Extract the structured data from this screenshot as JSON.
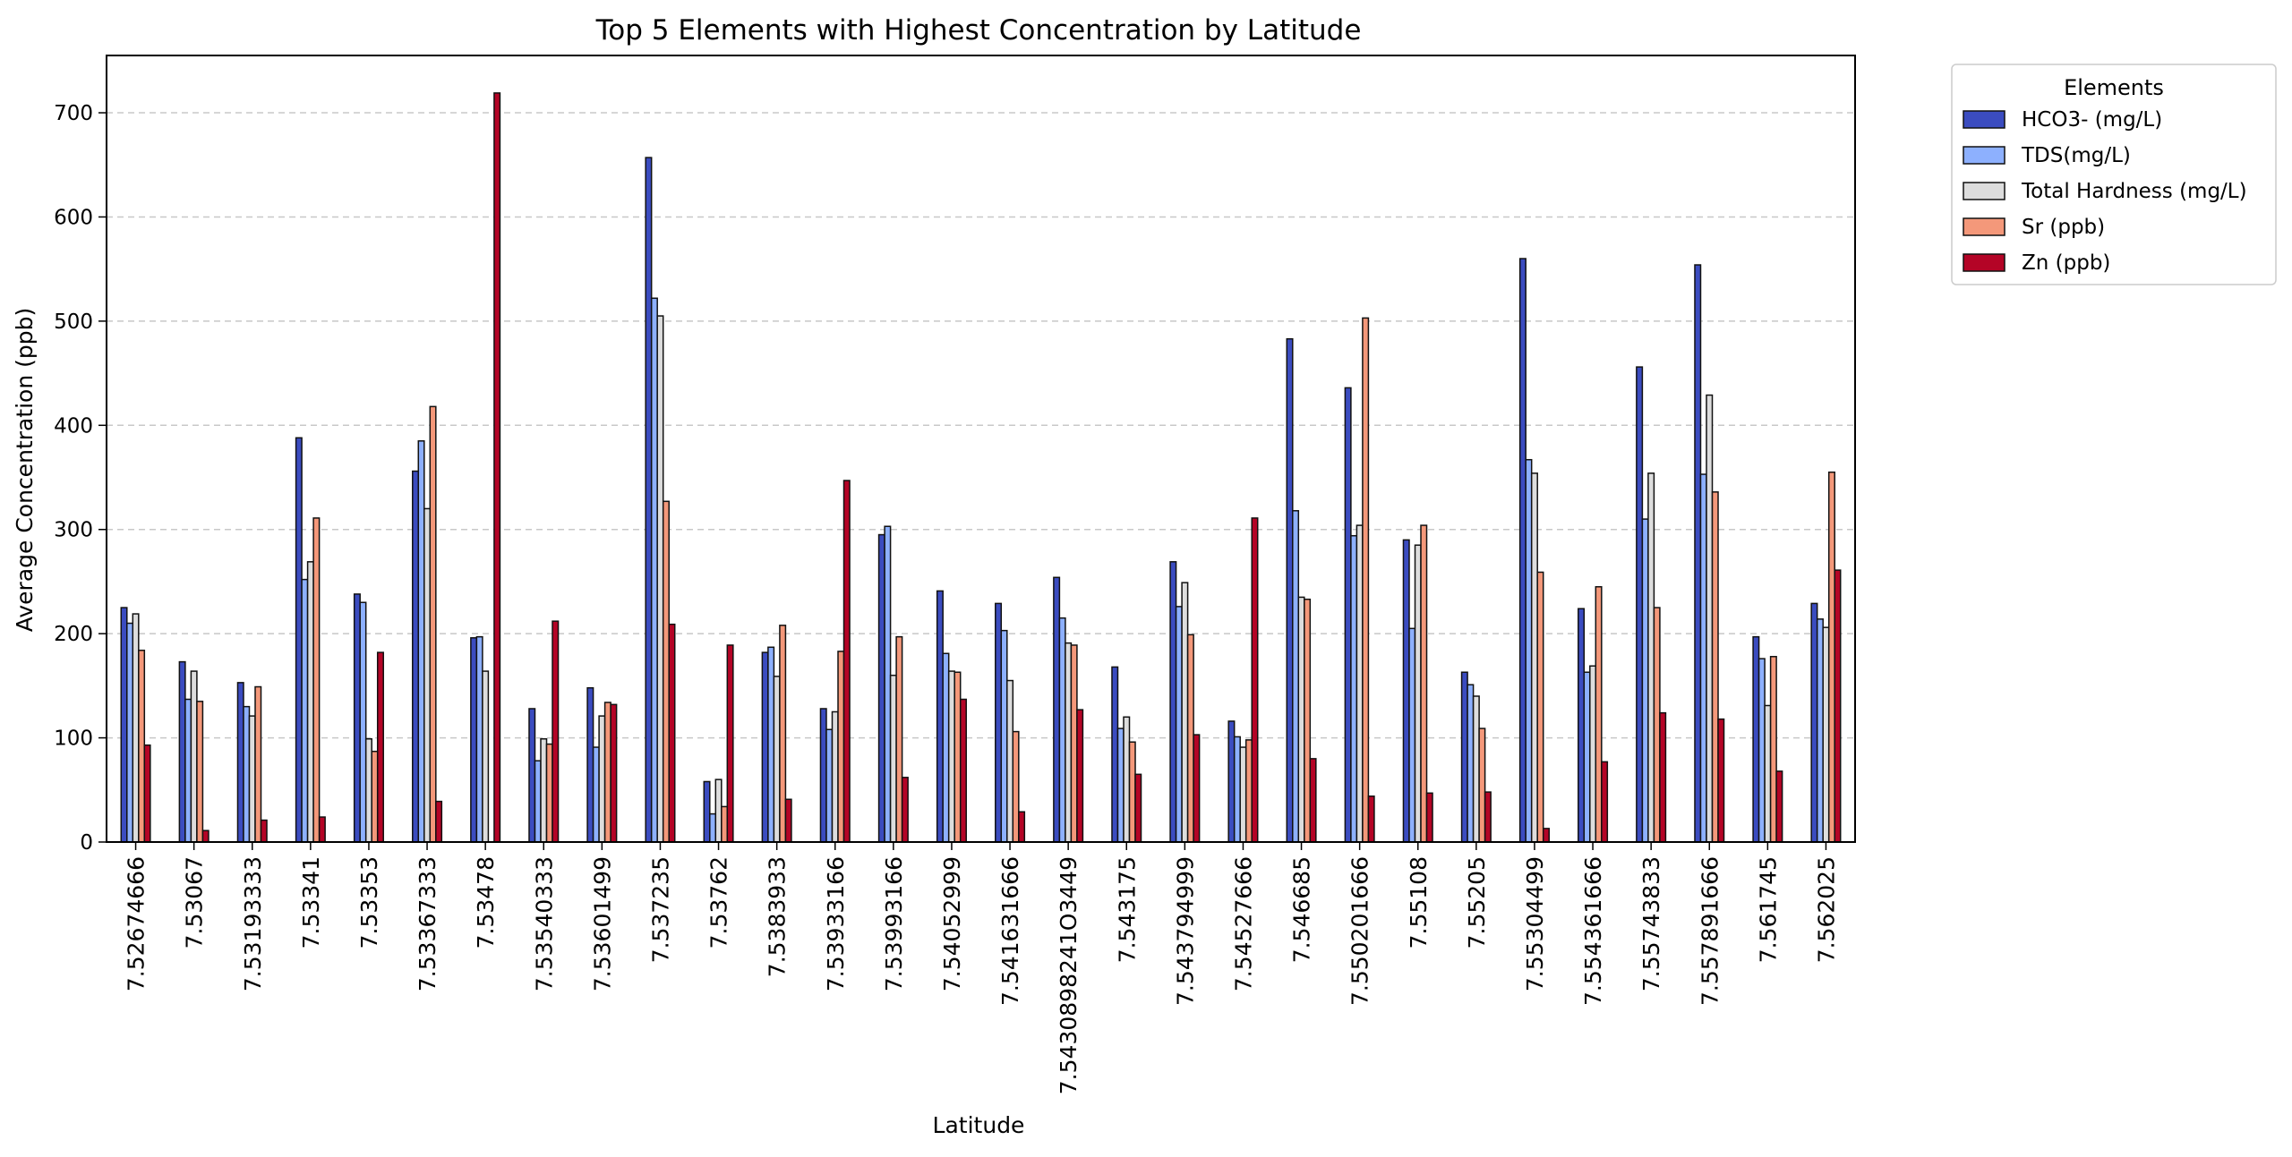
{
  "chart_data": {
    "type": "bar",
    "title": "Top 5 Elements with Highest Concentration by Latitude",
    "xlabel": "Latitude",
    "ylabel": "Average Concentration (ppb)",
    "ylim": [
      0,
      755
    ],
    "yticks": [
      0,
      100,
      200,
      300,
      400,
      500,
      600,
      700
    ],
    "grid": "y-dashed",
    "legend_title": "Elements",
    "legend_position": "outside-right-top",
    "categories": [
      "7.52674666",
      "7.53067",
      "7.53193333",
      "7.53341",
      "7.53353",
      "7.53367333",
      "7.53478",
      "7.53540333",
      "7.53601499",
      "7.537235",
      "7.53762",
      "7.5383933",
      "7.53933166",
      "7.53993166",
      "7.54052999",
      "7.541631666",
      "7.5430898241O3449",
      "7.543175",
      "7.543794999",
      "7.54527666",
      "7.546685",
      "7.550201666",
      "7.55108",
      "7.55205",
      "7.55304499",
      "7.554361666",
      "7.55743833",
      "7.557891666",
      "7.561745",
      "7.562025"
    ],
    "series": [
      {
        "name": "HCO3-  (mg/L)",
        "color": "#3b4cc0",
        "values": [
          225,
          173,
          153,
          388,
          238,
          356,
          196,
          128,
          148,
          657,
          58,
          182,
          128,
          295,
          241,
          229,
          254,
          168,
          269,
          116,
          483,
          436,
          290,
          163,
          560,
          224,
          456,
          554,
          197,
          229
        ]
      },
      {
        "name": "TDS(mg/L)",
        "color": "#8db0fe",
        "values": [
          210,
          137,
          130,
          252,
          230,
          385,
          197,
          78,
          91,
          522,
          27,
          187,
          108,
          303,
          181,
          203,
          215,
          109,
          226,
          101,
          318,
          294,
          205,
          151,
          367,
          163,
          310,
          353,
          176,
          214
        ]
      },
      {
        "name": "Total Hardness (mg/L)",
        "color": "#dddddd",
        "values": [
          219,
          164,
          121,
          269,
          99,
          320,
          164,
          99,
          121,
          505,
          60,
          159,
          125,
          160,
          164,
          155,
          191,
          120,
          249,
          91,
          235,
          304,
          285,
          140,
          354,
          169,
          354,
          429,
          131,
          206
        ]
      },
      {
        "name": "Sr (ppb)",
        "color": "#f4987a",
        "values": [
          184,
          135,
          149,
          311,
          87,
          418,
          0,
          94,
          134,
          327,
          34,
          208,
          183,
          197,
          163,
          106,
          189,
          96,
          199,
          98,
          233,
          503,
          304,
          109,
          259,
          245,
          225,
          336,
          178,
          355
        ]
      },
      {
        "name": "Zn (ppb)",
        "color": "#b40426",
        "values": [
          93,
          11,
          21,
          24,
          182,
          39,
          719,
          212,
          132,
          209,
          189,
          41,
          347,
          62,
          137,
          29,
          127,
          65,
          103,
          311,
          80,
          44,
          47,
          48,
          13,
          77,
          124,
          118,
          68,
          261
        ]
      }
    ]
  }
}
